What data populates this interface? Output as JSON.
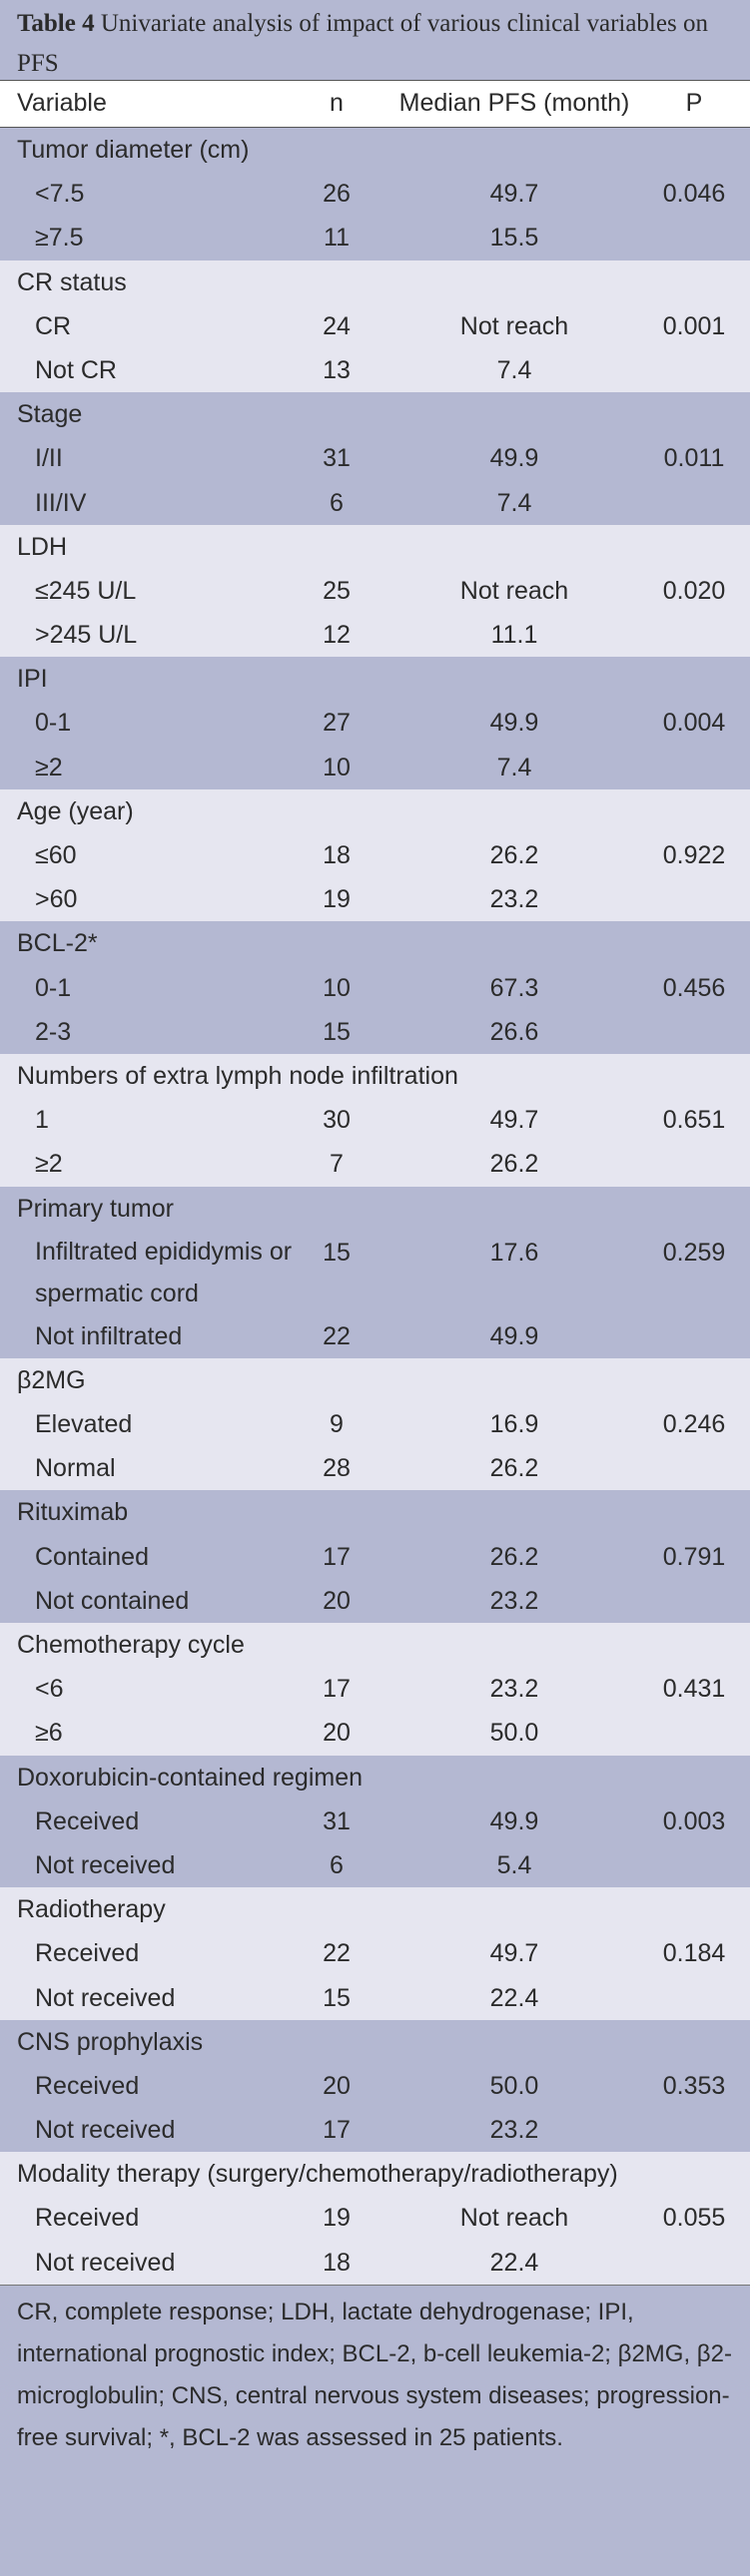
{
  "title": {
    "bold": "Table 4",
    "rest": " Univariate analysis of impact of various clinical variables on PFS"
  },
  "headers": {
    "variable": "Variable",
    "n": "n",
    "pfs": "Median PFS (month)",
    "p": "P"
  },
  "groups": [
    {
      "label": "Tumor diameter (cm)",
      "rows": [
        {
          "name": "<7.5",
          "n": "26",
          "pfs": "49.7",
          "p": "0.046"
        },
        {
          "name": "≥7.5",
          "n": "11",
          "pfs": "15.5",
          "p": ""
        }
      ]
    },
    {
      "label": "CR status",
      "rows": [
        {
          "name": "CR",
          "n": "24",
          "pfs": "Not reach",
          "p": "0.001"
        },
        {
          "name": "Not CR",
          "n": "13",
          "pfs": "7.4",
          "p": ""
        }
      ]
    },
    {
      "label": "Stage",
      "rows": [
        {
          "name": "I/II",
          "n": "31",
          "pfs": "49.9",
          "p": "0.011"
        },
        {
          "name": "III/IV",
          "n": "6",
          "pfs": "7.4",
          "p": ""
        }
      ]
    },
    {
      "label": "LDH",
      "rows": [
        {
          "name": "≤245 U/L",
          "n": "25",
          "pfs": "Not reach",
          "p": "0.020"
        },
        {
          "name": ">245 U/L",
          "n": "12",
          "pfs": "11.1",
          "p": ""
        }
      ]
    },
    {
      "label": "IPI",
      "rows": [
        {
          "name": "0-1",
          "n": "27",
          "pfs": "49.9",
          "p": "0.004"
        },
        {
          "name": "≥2",
          "n": "10",
          "pfs": "7.4",
          "p": ""
        }
      ]
    },
    {
      "label": "Age (year)",
      "rows": [
        {
          "name": "≤60",
          "n": "18",
          "pfs": "26.2",
          "p": "0.922"
        },
        {
          "name": ">60",
          "n": "19",
          "pfs": "23.2",
          "p": ""
        }
      ]
    },
    {
      "label": "BCL-2*",
      "rows": [
        {
          "name": "0-1",
          "n": "10",
          "pfs": "67.3",
          "p": "0.456"
        },
        {
          "name": "2-3",
          "n": "15",
          "pfs": "26.6",
          "p": ""
        }
      ]
    },
    {
      "label": "Numbers of extra lymph node infiltration",
      "rows": [
        {
          "name": "1",
          "n": "30",
          "pfs": "49.7",
          "p": "0.651"
        },
        {
          "name": "≥2",
          "n": "7",
          "pfs": "26.2",
          "p": ""
        }
      ]
    },
    {
      "label": "Primary tumor",
      "rows": [
        {
          "name": "Infiltrated epididymis or spermatic cord",
          "n": "15",
          "pfs": "17.6",
          "p": "0.259",
          "wrap": true
        },
        {
          "name": "Not infiltrated",
          "n": "22",
          "pfs": "49.9",
          "p": ""
        }
      ]
    },
    {
      "label": "β2MG",
      "rows": [
        {
          "name": "Elevated",
          "n": "9",
          "pfs": "16.9",
          "p": "0.246"
        },
        {
          "name": "Normal",
          "n": "28",
          "pfs": "26.2",
          "p": ""
        }
      ]
    },
    {
      "label": "Rituximab",
      "rows": [
        {
          "name": "Contained",
          "n": "17",
          "pfs": "26.2",
          "p": "0.791"
        },
        {
          "name": "Not contained",
          "n": "20",
          "pfs": "23.2",
          "p": ""
        }
      ]
    },
    {
      "label": "Chemotherapy cycle",
      "rows": [
        {
          "name": "<6",
          "n": "17",
          "pfs": "23.2",
          "p": "0.431"
        },
        {
          "name": "≥6",
          "n": "20",
          "pfs": "50.0",
          "p": ""
        }
      ]
    },
    {
      "label": "Doxorubicin-contained regimen",
      "rows": [
        {
          "name": "Received",
          "n": "31",
          "pfs": "49.9",
          "p": "0.003"
        },
        {
          "name": "Not received",
          "n": "6",
          "pfs": "5.4",
          "p": ""
        }
      ]
    },
    {
      "label": "Radiotherapy",
      "rows": [
        {
          "name": "Received",
          "n": "22",
          "pfs": "49.7",
          "p": "0.184"
        },
        {
          "name": "Not received",
          "n": "15",
          "pfs": "22.4",
          "p": ""
        }
      ]
    },
    {
      "label": "CNS prophylaxis",
      "rows": [
        {
          "name": "Received",
          "n": "20",
          "pfs": "50.0",
          "p": "0.353"
        },
        {
          "name": "Not received",
          "n": "17",
          "pfs": "23.2",
          "p": ""
        }
      ]
    },
    {
      "label": "Modality therapy (surgery/chemotherapy/radiotherapy)",
      "rows": [
        {
          "name": "Received",
          "n": "19",
          "pfs": "Not reach",
          "p": "0.055"
        },
        {
          "name": "Not received",
          "n": "18",
          "pfs": "22.4",
          "p": ""
        }
      ]
    }
  ],
  "footnote": "CR, complete response; LDH, lactate dehydrogenase; IPI, international prognostic index; BCL-2, b-cell leukemia-2; β2MG, β2-microglobulin; CNS, central nervous system diseases; progression-free survival; *, BCL-2 was assessed in 25 patients.",
  "colors": {
    "dark_band": "#b4b8d2",
    "light_band": "#e6e6f0"
  }
}
